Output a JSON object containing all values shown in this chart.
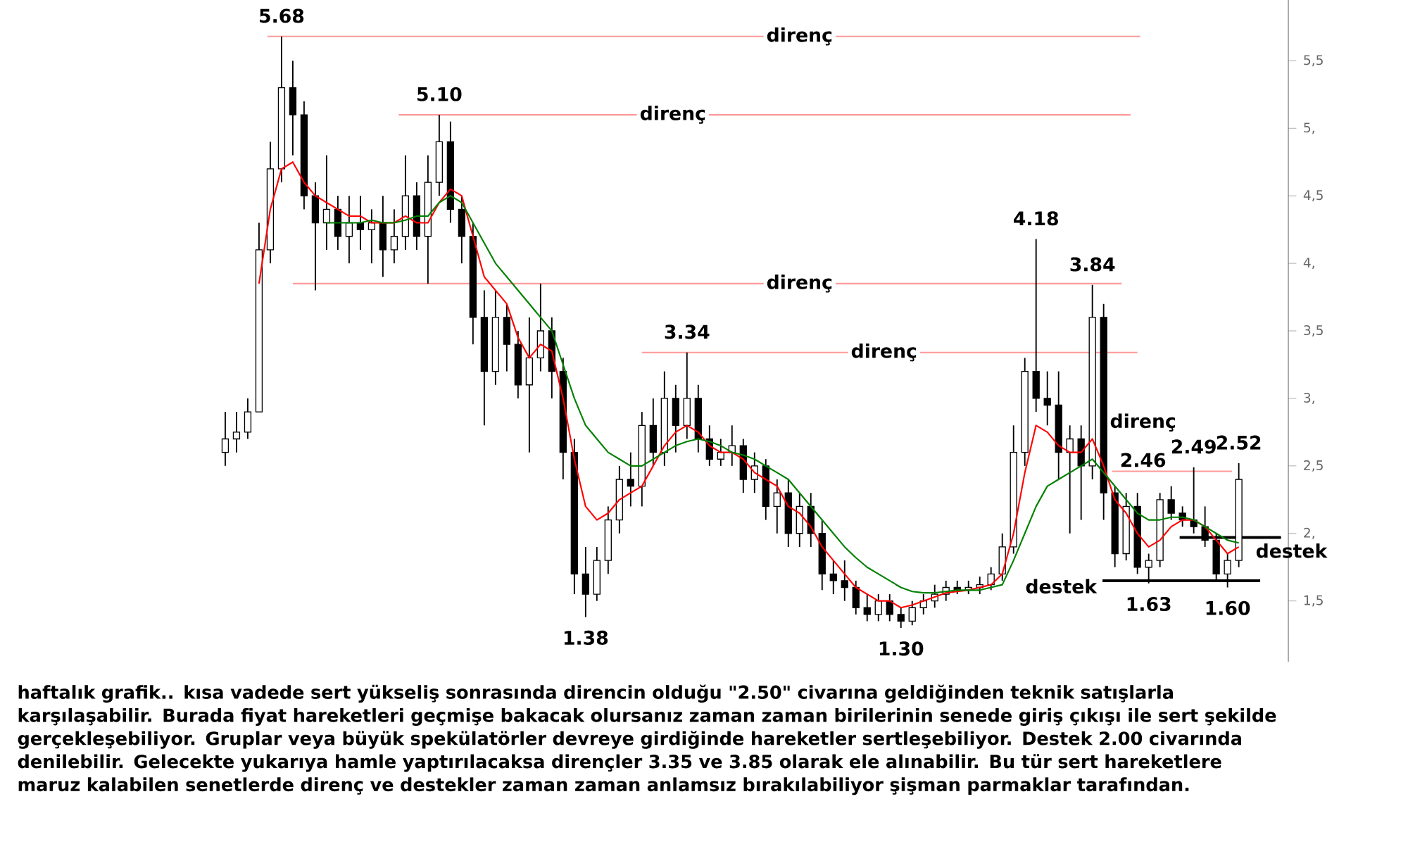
{
  "chart_data": {
    "type": "candlestick",
    "color": "#000000",
    "categories": [
      null,
      null,
      null,
      null,
      null,
      null,
      null,
      null,
      null,
      null,
      null,
      null,
      null,
      null,
      null,
      null,
      null,
      null,
      null,
      null,
      null,
      null,
      null,
      null,
      null,
      null,
      null,
      null,
      null,
      null,
      null,
      null,
      null,
      null,
      null,
      null,
      null,
      null,
      null,
      null,
      null,
      null,
      null,
      null,
      null,
      null,
      null,
      null,
      null,
      null,
      null,
      null,
      null,
      null,
      null,
      null,
      null,
      null,
      null,
      null,
      null,
      null,
      null,
      null,
      null,
      null,
      null,
      null,
      null,
      null,
      null,
      null,
      null,
      null,
      null,
      null,
      null,
      null,
      null,
      null,
      null,
      null,
      null,
      null,
      null,
      null,
      null,
      null,
      null,
      null,
      null
    ],
    "ohlc": [
      [
        2.6,
        2.9,
        2.5,
        2.7
      ],
      [
        2.7,
        2.9,
        2.6,
        2.75
      ],
      [
        2.75,
        3.0,
        2.7,
        2.9
      ],
      [
        2.9,
        4.3,
        2.9,
        4.1
      ],
      [
        4.1,
        4.9,
        4.0,
        4.7
      ],
      [
        4.7,
        5.68,
        4.6,
        5.3
      ],
      [
        5.3,
        5.5,
        4.8,
        5.1
      ],
      [
        5.1,
        5.2,
        4.4,
        4.5
      ],
      [
        4.5,
        4.6,
        3.8,
        4.3
      ],
      [
        4.3,
        4.8,
        4.1,
        4.4
      ],
      [
        4.4,
        4.5,
        4.1,
        4.2
      ],
      [
        4.2,
        4.5,
        4.0,
        4.3
      ],
      [
        4.3,
        4.5,
        4.1,
        4.25
      ],
      [
        4.25,
        4.4,
        4.0,
        4.3
      ],
      [
        4.3,
        4.5,
        3.9,
        4.1
      ],
      [
        4.1,
        4.4,
        4.0,
        4.2
      ],
      [
        4.2,
        4.8,
        4.1,
        4.5
      ],
      [
        4.5,
        4.6,
        4.1,
        4.2
      ],
      [
        4.2,
        4.8,
        3.85,
        4.6
      ],
      [
        4.6,
        5.1,
        4.5,
        4.9
      ],
      [
        4.9,
        5.05,
        4.3,
        4.4
      ],
      [
        4.4,
        4.5,
        4.0,
        4.2
      ],
      [
        4.2,
        4.3,
        3.4,
        3.6
      ],
      [
        3.6,
        3.8,
        2.8,
        3.2
      ],
      [
        3.2,
        3.8,
        3.1,
        3.6
      ],
      [
        3.6,
        3.7,
        3.2,
        3.4
      ],
      [
        3.4,
        3.5,
        3.0,
        3.1
      ],
      [
        3.1,
        3.6,
        2.6,
        3.3
      ],
      [
        3.3,
        3.85,
        3.2,
        3.5
      ],
      [
        3.5,
        3.6,
        3.0,
        3.2
      ],
      [
        3.2,
        3.3,
        2.4,
        2.6
      ],
      [
        2.6,
        2.7,
        1.55,
        1.7
      ],
      [
        1.7,
        1.9,
        1.38,
        1.55
      ],
      [
        1.55,
        1.9,
        1.5,
        1.8
      ],
      [
        1.8,
        2.2,
        1.7,
        2.1
      ],
      [
        2.1,
        2.5,
        2.0,
        2.4
      ],
      [
        2.4,
        2.6,
        2.2,
        2.35
      ],
      [
        2.35,
        2.9,
        2.2,
        2.8
      ],
      [
        2.8,
        3.0,
        2.5,
        2.6
      ],
      [
        2.6,
        3.2,
        2.5,
        3.0
      ],
      [
        3.0,
        3.1,
        2.6,
        2.8
      ],
      [
        2.8,
        3.34,
        2.7,
        3.0
      ],
      [
        3.0,
        3.1,
        2.6,
        2.7
      ],
      [
        2.7,
        2.8,
        2.5,
        2.55
      ],
      [
        2.55,
        2.7,
        2.5,
        2.6
      ],
      [
        2.6,
        2.8,
        2.5,
        2.65
      ],
      [
        2.65,
        2.7,
        2.3,
        2.4
      ],
      [
        2.4,
        2.6,
        2.3,
        2.5
      ],
      [
        2.5,
        2.55,
        2.1,
        2.2
      ],
      [
        2.2,
        2.4,
        2.0,
        2.3
      ],
      [
        2.3,
        2.4,
        1.9,
        2.0
      ],
      [
        2.0,
        2.3,
        1.9,
        2.2
      ],
      [
        2.2,
        2.3,
        1.9,
        2.0
      ],
      [
        2.0,
        2.1,
        1.58,
        1.7
      ],
      [
        1.7,
        1.8,
        1.55,
        1.65
      ],
      [
        1.65,
        1.8,
        1.5,
        1.6
      ],
      [
        1.6,
        1.65,
        1.4,
        1.45
      ],
      [
        1.45,
        1.55,
        1.35,
        1.4
      ],
      [
        1.4,
        1.55,
        1.35,
        1.5
      ],
      [
        1.5,
        1.55,
        1.35,
        1.4
      ],
      [
        1.4,
        1.45,
        1.3,
        1.35
      ],
      [
        1.35,
        1.5,
        1.32,
        1.45
      ],
      [
        1.45,
        1.55,
        1.4,
        1.5
      ],
      [
        1.5,
        1.62,
        1.45,
        1.55
      ],
      [
        1.55,
        1.65,
        1.5,
        1.6
      ],
      [
        1.6,
        1.65,
        1.55,
        1.58
      ],
      [
        1.58,
        1.65,
        1.55,
        1.6
      ],
      [
        1.6,
        1.68,
        1.55,
        1.62
      ],
      [
        1.62,
        1.75,
        1.58,
        1.7
      ],
      [
        1.7,
        2.0,
        1.65,
        1.9
      ],
      [
        1.9,
        2.8,
        1.85,
        2.6
      ],
      [
        2.6,
        3.3,
        2.5,
        3.2
      ],
      [
        3.2,
        4.18,
        2.9,
        3.0
      ],
      [
        3.0,
        3.2,
        2.8,
        2.95
      ],
      [
        2.95,
        3.2,
        2.4,
        2.6
      ],
      [
        2.6,
        2.8,
        2.0,
        2.7
      ],
      [
        2.7,
        2.8,
        2.1,
        2.5
      ],
      [
        2.5,
        3.84,
        2.4,
        3.6
      ],
      [
        3.6,
        3.7,
        2.1,
        2.3
      ],
      [
        2.3,
        2.35,
        1.75,
        1.85
      ],
      [
        1.85,
        2.3,
        1.8,
        2.2
      ],
      [
        2.2,
        2.3,
        1.7,
        1.75
      ],
      [
        1.75,
        1.85,
        1.63,
        1.8
      ],
      [
        1.8,
        2.3,
        1.75,
        2.25
      ],
      [
        2.25,
        2.35,
        2.1,
        2.15
      ],
      [
        2.15,
        2.2,
        2.05,
        2.1
      ],
      [
        2.1,
        2.49,
        2.0,
        2.05
      ],
      [
        2.05,
        2.2,
        1.9,
        1.95
      ],
      [
        1.95,
        2.0,
        1.65,
        1.7
      ],
      [
        1.7,
        1.85,
        1.6,
        1.8
      ],
      [
        1.8,
        2.52,
        1.75,
        2.4
      ]
    ],
    "series": [
      {
        "type": "line",
        "color": "#ff0000",
        "values": [
          null,
          null,
          null,
          3.85,
          4.4,
          4.7,
          4.75,
          4.6,
          4.5,
          4.45,
          4.4,
          4.35,
          4.35,
          4.3,
          4.3,
          4.3,
          4.35,
          4.3,
          4.3,
          4.45,
          4.55,
          4.5,
          4.2,
          3.9,
          3.8,
          3.7,
          3.45,
          3.3,
          3.4,
          3.35,
          3.0,
          2.55,
          2.2,
          2.1,
          2.15,
          2.25,
          2.3,
          2.35,
          2.5,
          2.65,
          2.75,
          2.8,
          2.75,
          2.65,
          2.6,
          2.6,
          2.55,
          2.45,
          2.4,
          2.35,
          2.2,
          2.15,
          2.05,
          1.9,
          1.8,
          1.7,
          1.6,
          1.55,
          1.5,
          1.5,
          1.45,
          1.47,
          1.5,
          1.53,
          1.56,
          1.57,
          1.58,
          1.6,
          1.62,
          1.7,
          2.0,
          2.45,
          2.8,
          2.75,
          2.65,
          2.6,
          2.6,
          2.7,
          2.5,
          2.25,
          2.15,
          2.0,
          1.9,
          1.95,
          2.05,
          2.1,
          2.1,
          2.05,
          1.95,
          1.85,
          1.9
        ]
      },
      {
        "type": "line",
        "color": "#008000",
        "values": [
          null,
          null,
          null,
          null,
          null,
          null,
          null,
          null,
          null,
          4.3,
          4.3,
          4.3,
          4.3,
          4.32,
          4.3,
          4.3,
          4.32,
          4.35,
          4.35,
          4.45,
          4.5,
          4.45,
          4.3,
          4.15,
          4.0,
          3.9,
          3.8,
          3.7,
          3.6,
          3.5,
          3.25,
          3.0,
          2.8,
          2.7,
          2.6,
          2.55,
          2.5,
          2.5,
          2.55,
          2.6,
          2.65,
          2.68,
          2.7,
          2.68,
          2.65,
          2.6,
          2.58,
          2.55,
          2.5,
          2.45,
          2.4,
          2.3,
          2.2,
          2.1,
          2.0,
          1.9,
          1.82,
          1.75,
          1.7,
          1.65,
          1.6,
          1.57,
          1.56,
          1.56,
          1.57,
          1.58,
          1.58,
          1.58,
          1.6,
          1.62,
          1.8,
          2.0,
          2.2,
          2.35,
          2.4,
          2.45,
          2.5,
          2.55,
          2.45,
          2.35,
          2.25,
          2.15,
          2.1,
          2.1,
          2.12,
          2.12,
          2.1,
          2.05,
          2.0,
          1.95,
          1.93
        ]
      }
    ],
    "ylim": [
      1.05,
      5.95
    ],
    "yticks": [
      {
        "value": 1.5,
        "label": "1,5"
      },
      {
        "value": 2,
        "label": "2,"
      },
      {
        "value": 2.5,
        "label": "2,5"
      },
      {
        "value": 3,
        "label": "3,"
      },
      {
        "value": 3.5,
        "label": "3,5"
      },
      {
        "value": 4,
        "label": "4,"
      },
      {
        "value": 4.5,
        "label": "4,5"
      },
      {
        "value": 5,
        "label": "5,"
      },
      {
        "value": 5.5,
        "label": "5,5"
      }
    ],
    "tick_labels": "y",
    "ref_lines": [
      {
        "axis": "y",
        "value": 5.68,
        "label": "direnç",
        "color": "#ff9999"
      },
      {
        "axis": "y",
        "value": 5.1,
        "label": "direnç",
        "color": "#ff9999"
      },
      {
        "axis": "y",
        "value": 3.85,
        "label": "direnç",
        "color": "#ff9999"
      },
      {
        "axis": "y",
        "value": 3.34,
        "label": "direnç",
        "color": "#ff9999"
      },
      {
        "axis": "y",
        "value": 2.46,
        "label": "direnç",
        "color": "#ff9999"
      },
      {
        "axis": "y",
        "value": 1.97,
        "label": "destek",
        "color": "#000000"
      },
      {
        "axis": "y",
        "value": 1.65,
        "label": "destek",
        "color": "#000000"
      }
    ],
    "annotations": [
      "haftalık grafik.. kısa vadede sert yükseliş sonrasında direncin olduğu \"2.50\" civarına geldiğinden teknik satışlarla karşılaşabilir. Burada fiyat hareketleri geçmişe bakacak olursanız zaman zaman birilerinin senede giriş çıkışı ile sert şekilde gerçekleşebiliyor. Gruplar veya büyük spekülatörler devreye girdiğinde hareketler sertleşebiliyor. Destek 2.00 civarında denilebilir. Gelecekte yukarıya hamle yaptırılacaksa dirençler 3.35 ve 3.85 olarak ele alınabilir. Bu tür sert hareketlere maruz kalabilen senetlerde direnç ve destekler zaman zaman anlamsız bırakılabiliyor şişman parmaklar tarafından.",
      {
        "text": "5.68",
        "y": 5.68
      },
      {
        "text": "5.10",
        "y": 5.1
      },
      {
        "text": "4.18",
        "y": 4.18
      },
      {
        "text": "3.84",
        "y": 3.84
      },
      {
        "text": "3.34",
        "y": 3.34
      },
      {
        "text": "1.38",
        "y": 1.38
      },
      {
        "text": "1.30",
        "y": 1.3
      },
      {
        "text": "2.46",
        "y": 2.46
      },
      {
        "text": "2.49",
        "y": 2.49
      },
      {
        "text": "2.52",
        "y": 2.52
      },
      {
        "text": "1.63",
        "y": 1.63
      },
      {
        "text": "1.60",
        "y": 1.6
      }
    ]
  }
}
